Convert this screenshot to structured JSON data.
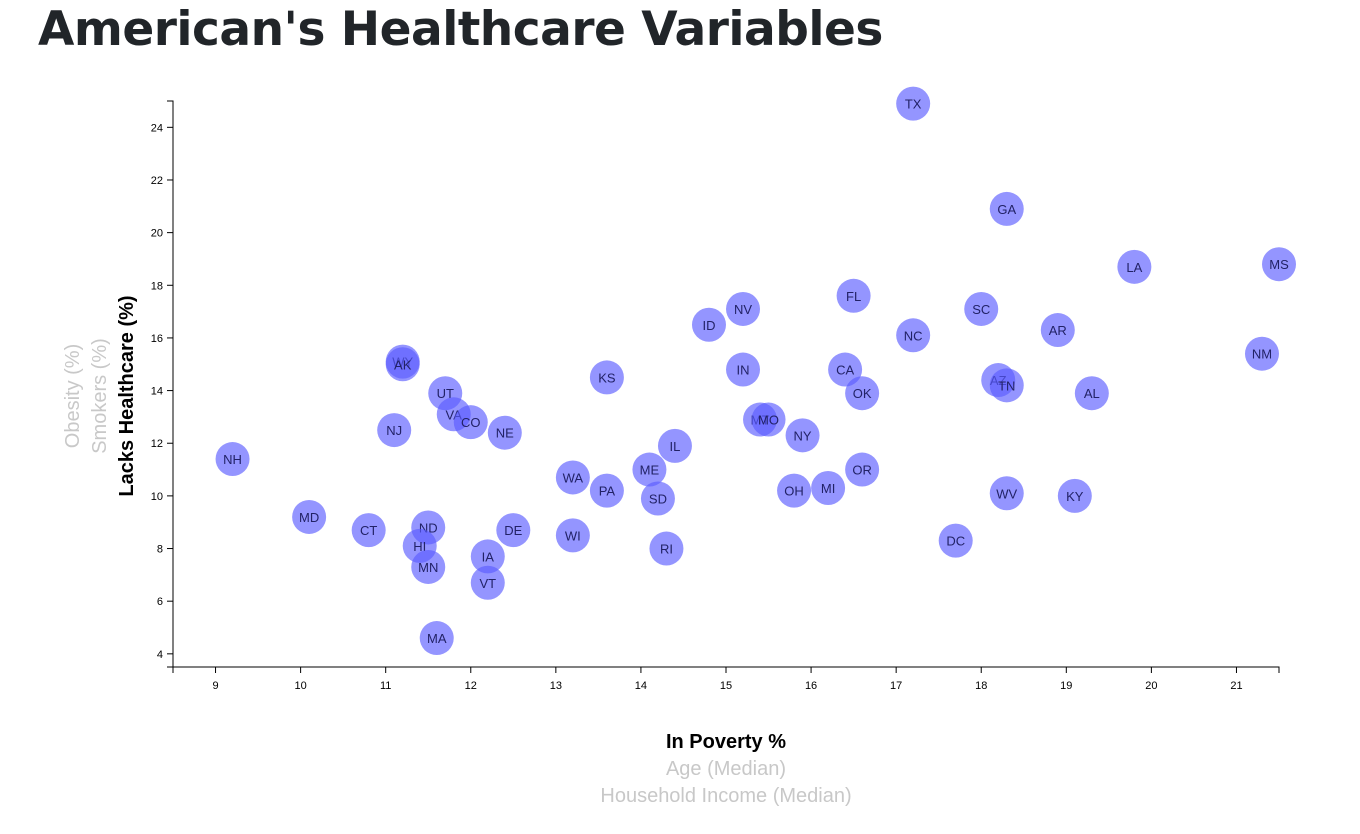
{
  "page": {
    "title": "American's Healthcare Variables"
  },
  "colors": {
    "dot": "#5a5cff",
    "active_label": "#000000",
    "inactive_label": "#c8c8c8",
    "title": "#212529"
  },
  "chart_data": {
    "type": "scatter",
    "title": "American's Healthcare Variables",
    "x_axis_options": [
      {
        "label": "In Poverty %",
        "active": true
      },
      {
        "label": "Age (Median)",
        "active": false
      },
      {
        "label": "Household Income (Median)",
        "active": false
      }
    ],
    "y_axis_options": [
      {
        "label": "Lacks Healthcare (%)",
        "active": true
      },
      {
        "label": "Smokers (%)",
        "active": false
      },
      {
        "label": "Obesity (%)",
        "active": false
      }
    ],
    "xlim": [
      8.5,
      21.5
    ],
    "ylim": [
      3.5,
      25
    ],
    "x_ticks": [
      9,
      10,
      11,
      12,
      13,
      14,
      15,
      16,
      17,
      18,
      19,
      20,
      21
    ],
    "y_ticks": [
      4,
      6,
      8,
      10,
      12,
      14,
      16,
      18,
      20,
      22,
      24
    ],
    "points": [
      {
        "abbr": "TX",
        "x": 17.2,
        "y": 24.9
      },
      {
        "abbr": "GA",
        "x": 18.3,
        "y": 20.9
      },
      {
        "abbr": "LA",
        "x": 19.8,
        "y": 18.7
      },
      {
        "abbr": "MS",
        "x": 21.5,
        "y": 18.8
      },
      {
        "abbr": "FL",
        "x": 16.5,
        "y": 17.6
      },
      {
        "abbr": "NV",
        "x": 15.2,
        "y": 17.1
      },
      {
        "abbr": "SC",
        "x": 18.0,
        "y": 17.1
      },
      {
        "abbr": "ID",
        "x": 14.8,
        "y": 16.5
      },
      {
        "abbr": "AR",
        "x": 18.9,
        "y": 16.3
      },
      {
        "abbr": "NC",
        "x": 17.2,
        "y": 16.1
      },
      {
        "abbr": "NM",
        "x": 21.3,
        "y": 15.4
      },
      {
        "abbr": "WY",
        "x": 11.2,
        "y": 15.1
      },
      {
        "abbr": "AK",
        "x": 11.2,
        "y": 15.0
      },
      {
        "abbr": "CA",
        "x": 16.4,
        "y": 14.8
      },
      {
        "abbr": "IN",
        "x": 15.2,
        "y": 14.8
      },
      {
        "abbr": "KS",
        "x": 13.6,
        "y": 14.5
      },
      {
        "abbr": "AZ",
        "x": 18.2,
        "y": 14.4
      },
      {
        "abbr": "TN",
        "x": 18.3,
        "y": 14.2
      },
      {
        "abbr": "UT",
        "x": 11.7,
        "y": 13.9
      },
      {
        "abbr": "OK",
        "x": 16.6,
        "y": 13.9
      },
      {
        "abbr": "AL",
        "x": 19.3,
        "y": 13.9
      },
      {
        "abbr": "VA",
        "x": 11.8,
        "y": 13.1
      },
      {
        "abbr": "MT",
        "x": 15.4,
        "y": 12.9
      },
      {
        "abbr": "MO",
        "x": 15.5,
        "y": 12.9
      },
      {
        "abbr": "CO",
        "x": 12.0,
        "y": 12.8
      },
      {
        "abbr": "NJ",
        "x": 11.1,
        "y": 12.5
      },
      {
        "abbr": "NE",
        "x": 12.4,
        "y": 12.4
      },
      {
        "abbr": "NY",
        "x": 15.9,
        "y": 12.3
      },
      {
        "abbr": "IL",
        "x": 14.4,
        "y": 11.9
      },
      {
        "abbr": "NH",
        "x": 9.2,
        "y": 11.4
      },
      {
        "abbr": "ME",
        "x": 14.1,
        "y": 11.0
      },
      {
        "abbr": "OR",
        "x": 16.6,
        "y": 11.0
      },
      {
        "abbr": "WA",
        "x": 13.2,
        "y": 10.7
      },
      {
        "abbr": "OH",
        "x": 15.8,
        "y": 10.2
      },
      {
        "abbr": "MI",
        "x": 16.2,
        "y": 10.3
      },
      {
        "abbr": "PA",
        "x": 13.6,
        "y": 10.2
      },
      {
        "abbr": "WV",
        "x": 18.3,
        "y": 10.1
      },
      {
        "abbr": "KY",
        "x": 19.1,
        "y": 10.0
      },
      {
        "abbr": "SD",
        "x": 14.2,
        "y": 9.9
      },
      {
        "abbr": "MD",
        "x": 10.1,
        "y": 9.2
      },
      {
        "abbr": "ND",
        "x": 11.5,
        "y": 8.8
      },
      {
        "abbr": "CT",
        "x": 10.8,
        "y": 8.7
      },
      {
        "abbr": "DE",
        "x": 12.5,
        "y": 8.7
      },
      {
        "abbr": "WI",
        "x": 13.2,
        "y": 8.5
      },
      {
        "abbr": "DC",
        "x": 17.7,
        "y": 8.3
      },
      {
        "abbr": "HI",
        "x": 11.4,
        "y": 8.1
      },
      {
        "abbr": "RI",
        "x": 14.3,
        "y": 8.0
      },
      {
        "abbr": "IA",
        "x": 12.2,
        "y": 7.7
      },
      {
        "abbr": "MN",
        "x": 11.5,
        "y": 7.3
      },
      {
        "abbr": "VT",
        "x": 12.2,
        "y": 6.7
      },
      {
        "abbr": "MA",
        "x": 11.6,
        "y": 4.6
      }
    ]
  }
}
